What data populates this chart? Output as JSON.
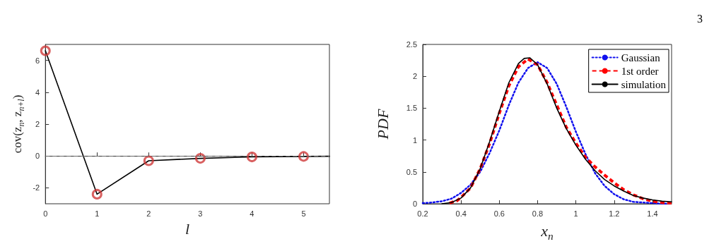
{
  "chart_data": [
    {
      "type": "line",
      "xlabel": "l",
      "ylabel": "cov(z$_{n}$, z$_{n+l}$)",
      "xlim": [
        0,
        5.5
      ],
      "xticks": [
        0,
        1,
        2,
        3,
        4,
        5
      ],
      "ylim": [
        -3,
        7
      ],
      "yticks": [
        -2,
        0,
        2,
        4,
        6
      ],
      "grid": false,
      "legend": false,
      "ref_lines": [
        {
          "axis": "y",
          "value": 0,
          "color": "#666666",
          "line_style": "dashed"
        }
      ],
      "series": [
        {
          "type": "line",
          "color": "#000000",
          "marker": "none",
          "line_style": "solid",
          "x": [
            0,
            1,
            2,
            3,
            4,
            5,
            5.5
          ],
          "values": [
            6.6,
            -2.4,
            -0.3,
            -0.15,
            -0.06,
            -0.03,
            -0.02
          ]
        },
        {
          "type": "scatter",
          "color": "#d03a3a",
          "marker": "circle",
          "x": [
            0,
            1,
            2,
            3,
            4,
            5
          ],
          "values": [
            6.6,
            -2.4,
            -0.3,
            -0.15,
            -0.06,
            -0.03
          ]
        }
      ]
    },
    {
      "type": "line",
      "xlabel": "x$_{n}$",
      "ylabel": "PDF",
      "xlim": [
        0.2,
        1.5
      ],
      "xticks": [
        0.2,
        0.4,
        0.6,
        0.8,
        1,
        1.2,
        1.4
      ],
      "ylim": [
        0,
        2.5
      ],
      "yticks": [
        0,
        0.5,
        1,
        1.5,
        2,
        2.5
      ],
      "grid": false,
      "legend": "top right",
      "annotations": [
        "3"
      ],
      "series": [
        {
          "name": "Gaussian",
          "color": "#1010ee",
          "marker": "none",
          "line_style": "dotted",
          "x": [
            0.2,
            0.25,
            0.3,
            0.35,
            0.4,
            0.45,
            0.5,
            0.55,
            0.6,
            0.65,
            0.7,
            0.75,
            0.8,
            0.85,
            0.9,
            0.95,
            1,
            1.05,
            1.1,
            1.15,
            1.2,
            1.25,
            1.3,
            1.35,
            1.4,
            1.45,
            1.5
          ],
          "values": [
            0.01,
            0.02,
            0.04,
            0.08,
            0.17,
            0.3,
            0.5,
            0.8,
            1.15,
            1.55,
            1.9,
            2.13,
            2.22,
            2.13,
            1.88,
            1.52,
            1.13,
            0.78,
            0.48,
            0.28,
            0.15,
            0.07,
            0.03,
            0.02,
            0.01,
            0,
            0
          ]
        },
        {
          "name": "1st order",
          "color": "#ff0000",
          "marker": "none",
          "line_style": "dashed",
          "x": [
            0.34,
            0.38,
            0.4,
            0.45,
            0.5,
            0.55,
            0.6,
            0.65,
            0.7,
            0.75,
            0.8,
            0.85,
            0.9,
            0.95,
            1,
            1.05,
            1.1,
            1.15,
            1.2,
            1.25,
            1.3,
            1.35,
            1.4,
            1.45,
            1.5
          ],
          "values": [
            0.01,
            0.05,
            0.1,
            0.25,
            0.55,
            0.95,
            1.42,
            1.85,
            2.15,
            2.27,
            2.18,
            1.9,
            1.55,
            1.2,
            0.95,
            0.73,
            0.58,
            0.45,
            0.33,
            0.22,
            0.14,
            0.08,
            0.04,
            0.02,
            0.01
          ]
        },
        {
          "name": "simulation",
          "color": "#000000",
          "marker": "none",
          "line_style": "solid",
          "x": [
            0.3,
            0.35,
            0.4,
            0.45,
            0.5,
            0.55,
            0.6,
            0.65,
            0.7,
            0.73,
            0.76,
            0.8,
            0.85,
            0.9,
            0.95,
            1,
            1.05,
            1.1,
            1.15,
            1.2,
            1.25,
            1.3,
            1.35,
            1.4,
            1.45,
            1.5
          ],
          "values": [
            0,
            0.02,
            0.09,
            0.25,
            0.55,
            0.98,
            1.45,
            1.9,
            2.2,
            2.28,
            2.29,
            2.18,
            1.88,
            1.5,
            1.18,
            0.92,
            0.7,
            0.52,
            0.38,
            0.28,
            0.2,
            0.13,
            0.09,
            0.06,
            0.04,
            0.03
          ]
        }
      ]
    }
  ]
}
